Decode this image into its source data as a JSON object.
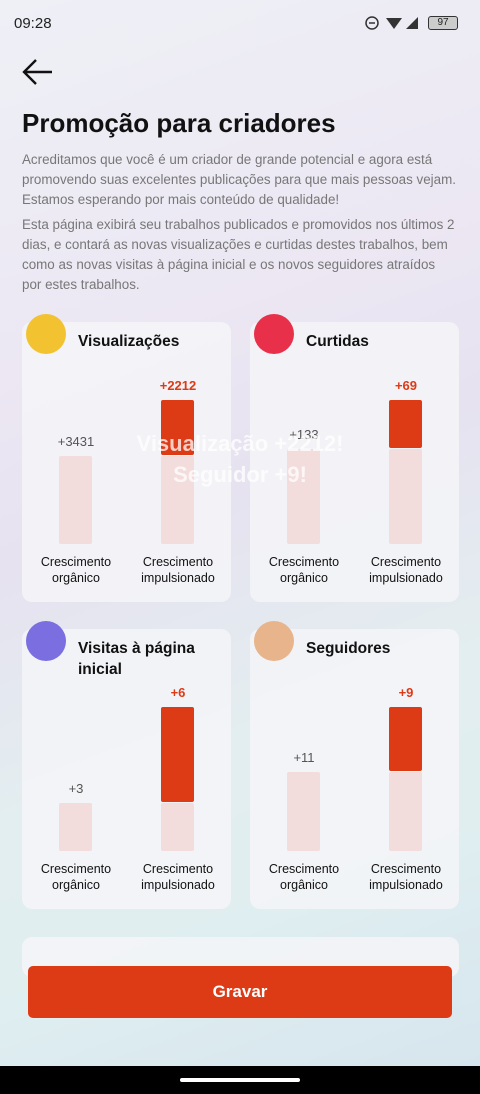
{
  "status_bar": {
    "time": "09:28",
    "battery": "97"
  },
  "header": {
    "title": "Promoção para criadores",
    "paragraphs": [
      "Acreditamos que você é um criador de grande potencial e agora está promovendo suas excelentes publicações para que mais pessoas vejam. Estamos esperando por mais conteúdo de qualidade!",
      "Esta página exibirá seu trabalhos publicados e promovidos nos últimos 2 dias, e contará as novas visualizações e curtidas destes trabalhos, bem como as novas visitas à página inicial e os novos seguidores atraídos por estes trabalhos."
    ]
  },
  "overlay": {
    "lines": [
      "Visualização +2212!",
      "Seguidor +9!"
    ]
  },
  "cards": [
    {
      "title": "Visualizações",
      "values": [
        3431,
        2212
      ],
      "value_labels": [
        "+3431",
        "+2212"
      ],
      "captions": [
        "Crescimento orgânico",
        "Crescimento impulsionado"
      ]
    },
    {
      "title": "Curtidas",
      "values": [
        133,
        69
      ],
      "value_labels": [
        "+133",
        "+69"
      ],
      "captions": [
        "Crescimento orgânico",
        "Crescimento impulsionado"
      ]
    },
    {
      "title": "Visitas à página inicial",
      "values": [
        3,
        6
      ],
      "value_labels": [
        "+3",
        "+6"
      ],
      "captions": [
        "Crescimento orgânico",
        "Crescimento impulsionado"
      ]
    },
    {
      "title": "Seguidores",
      "values": [
        11,
        9
      ],
      "value_labels": [
        "+11",
        "+9"
      ],
      "captions": [
        "Crescimento orgânico",
        "Crescimento impulsionado"
      ]
    }
  ],
  "button": {
    "label": "Gravar"
  }
}
